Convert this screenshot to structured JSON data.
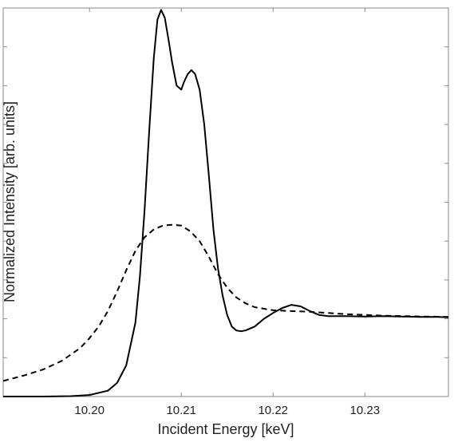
{
  "chart_data": {
    "type": "line",
    "xlabel": "Incident Energy [keV]",
    "ylabel": "Normalized Intensity [arb. units]",
    "xlim": [
      10.1906,
      10.2391
    ],
    "ylim": [
      0,
      1.0
    ],
    "x_ticks": [
      10.2,
      10.21,
      10.22,
      10.23
    ],
    "x_tick_labels": [
      "10.20",
      "10.21",
      "10.22",
      "10.23"
    ],
    "y_ticks": [
      0.1,
      0.2,
      0.3,
      0.4,
      0.5,
      0.6,
      0.7,
      0.8,
      0.9,
      1.0
    ],
    "y_tick_labels_shown": false,
    "grid": false,
    "legend": "none",
    "series": [
      {
        "style": "solid",
        "color": "#000000",
        "x": [
          10.1906,
          10.195,
          10.198,
          10.2,
          10.202,
          10.203,
          10.204,
          10.205,
          10.2055,
          10.206,
          10.2065,
          10.207,
          10.2074,
          10.2078,
          10.2082,
          10.2086,
          10.209,
          10.2095,
          10.21,
          10.2103,
          10.2107,
          10.2111,
          10.2115,
          10.212,
          10.2125,
          10.213,
          10.2135,
          10.214,
          10.2145,
          10.215,
          10.2155,
          10.216,
          10.2165,
          10.217,
          10.218,
          10.219,
          10.22,
          10.221,
          10.222,
          10.223,
          10.224,
          10.225,
          10.226,
          10.228,
          10.23,
          10.232,
          10.234,
          10.236,
          10.238,
          10.2391
        ],
        "y": [
          0.0,
          0.0,
          0.001,
          0.004,
          0.015,
          0.035,
          0.08,
          0.19,
          0.31,
          0.48,
          0.68,
          0.87,
          0.97,
          0.995,
          0.975,
          0.92,
          0.86,
          0.8,
          0.79,
          0.81,
          0.83,
          0.84,
          0.83,
          0.79,
          0.7,
          0.57,
          0.43,
          0.33,
          0.26,
          0.21,
          0.18,
          0.17,
          0.168,
          0.17,
          0.18,
          0.2,
          0.215,
          0.228,
          0.236,
          0.232,
          0.22,
          0.21,
          0.207,
          0.207,
          0.206,
          0.207,
          0.206,
          0.205,
          0.205,
          0.204
        ]
      },
      {
        "style": "dashed",
        "color": "#000000",
        "x": [
          10.1906,
          10.193,
          10.195,
          10.197,
          10.199,
          10.2,
          10.201,
          10.202,
          10.203,
          10.204,
          10.205,
          10.206,
          10.207,
          10.208,
          10.209,
          10.21,
          10.211,
          10.212,
          10.213,
          10.214,
          10.215,
          10.216,
          10.217,
          10.218,
          10.22,
          10.222,
          10.224,
          10.226,
          10.228,
          10.23,
          10.232,
          10.234,
          10.236,
          10.2391
        ],
        "y": [
          0.04,
          0.055,
          0.07,
          0.092,
          0.125,
          0.15,
          0.18,
          0.22,
          0.27,
          0.325,
          0.375,
          0.41,
          0.43,
          0.44,
          0.442,
          0.44,
          0.425,
          0.4,
          0.36,
          0.315,
          0.28,
          0.255,
          0.24,
          0.23,
          0.222,
          0.22,
          0.218,
          0.215,
          0.212,
          0.21,
          0.208,
          0.207,
          0.206,
          0.205
        ]
      }
    ]
  }
}
